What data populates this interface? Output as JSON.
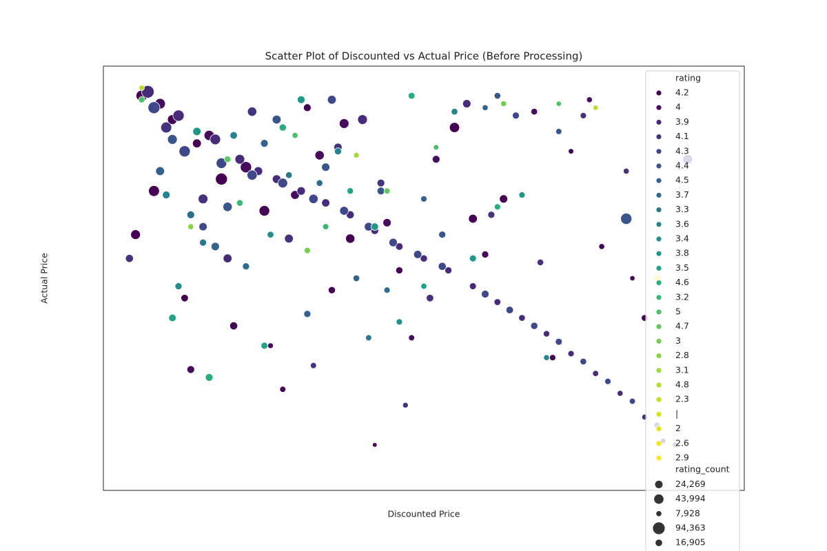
{
  "chart_data": {
    "type": "scatter",
    "title": "Scatter Plot of Discounted vs Actual Price (Before Processing)",
    "xlabel": "Discounted Price",
    "ylabel": "Actual Price",
    "xlim": [
      0,
      100
    ],
    "ylim": [
      0,
      100
    ],
    "legend_title": "rating",
    "size_legend_title": "rating_count",
    "legend_position": "upper right",
    "series": [
      {
        "name": "4.2",
        "color": "#440154",
        "x": [
          4,
          9,
          13,
          17,
          24,
          31,
          38,
          46,
          55,
          63,
          71,
          79,
          86,
          11,
          19,
          27,
          6,
          35,
          58,
          74,
          3,
          42
        ],
        "y": [
          96,
          90,
          84,
          75,
          67,
          93,
          60,
          52,
          88,
          70,
          30,
          58,
          40,
          45,
          38,
          22,
          72,
          47,
          65,
          82,
          61,
          8
        ],
        "s": [
          60000,
          40000,
          30000,
          70000,
          50000,
          20000,
          35000,
          15000,
          45000,
          25000,
          10000,
          8000,
          12000,
          18000,
          22000,
          9000,
          55000,
          16000,
          30000,
          6000,
          40000,
          3000
        ]
      },
      {
        "name": "4",
        "color": "#450d5c",
        "x": [
          7,
          15,
          21,
          29,
          37,
          44,
          52,
          60,
          68,
          77,
          84,
          12,
          25,
          33,
          48
        ],
        "y": [
          94,
          86,
          78,
          71,
          89,
          64,
          80,
          56,
          92,
          95,
          50,
          27,
          33,
          81,
          35
        ],
        "s": [
          50000,
          45000,
          60000,
          30000,
          40000,
          25000,
          20000,
          15000,
          12000,
          8000,
          5000,
          20000,
          7000,
          35000,
          9000
        ]
      },
      {
        "name": "3.9",
        "color": "#472c7a",
        "x": [
          5,
          10,
          16,
          20,
          23,
          26,
          30,
          34,
          38,
          42,
          46,
          50,
          54,
          58,
          62,
          66,
          70,
          74,
          78,
          82,
          86,
          89,
          18,
          40,
          57
        ],
        "y": [
          97,
          91,
          85,
          80,
          77,
          75,
          72,
          69,
          66,
          62,
          58,
          55,
          52,
          48,
          44,
          40,
          36,
          31,
          26,
          21,
          15,
          9,
          55,
          90,
          94
        ],
        "s": [
          80000,
          60000,
          50000,
          40000,
          30000,
          28000,
          26000,
          24000,
          22000,
          20000,
          18000,
          16000,
          15000,
          14000,
          13000,
          12000,
          11000,
          10000,
          9000,
          8000,
          7000,
          6000,
          30000,
          40000,
          25000
        ]
      },
      {
        "name": "4.1",
        "color": "#46337e",
        "x": [
          8,
          14,
          22,
          28,
          36,
          43,
          51,
          61,
          69,
          76,
          83,
          2,
          32,
          47
        ],
        "y": [
          88,
          70,
          92,
          60,
          83,
          74,
          45,
          66,
          54,
          91,
          77,
          55,
          28,
          18
        ],
        "s": [
          55000,
          40000,
          35000,
          30000,
          25000,
          20000,
          18000,
          15000,
          12000,
          10000,
          8000,
          22000,
          9000,
          7000
        ]
      },
      {
        "name": "4.3",
        "color": "#3f4889",
        "x": [
          6,
          11,
          17,
          22,
          27,
          32,
          37,
          41,
          45,
          49,
          53,
          60,
          64,
          68,
          72,
          76,
          80,
          84,
          88,
          91,
          14,
          35,
          65,
          93
        ],
        "y": [
          93,
          82,
          79,
          76,
          74,
          70,
          67,
          63,
          59,
          56,
          53,
          46,
          42,
          38,
          34,
          29,
          24,
          19,
          13,
          8,
          63,
          95,
          91,
          80
        ],
        "s": [
          70000,
          60000,
          50000,
          45000,
          40000,
          35000,
          30000,
          28000,
          26000,
          24000,
          22000,
          20000,
          18000,
          16000,
          14000,
          12000,
          10000,
          9000,
          8000,
          7000,
          25000,
          30000,
          15000,
          40000
        ]
      },
      {
        "name": "4.4",
        "color": "#3a548c",
        "x": [
          9,
          18,
          26,
          34,
          43,
          53,
          62,
          72,
          83
        ],
        "y": [
          85,
          68,
          90,
          78,
          72,
          61,
          96,
          87,
          65
        ],
        "s": [
          40000,
          35000,
          30000,
          25000,
          20000,
          15000,
          12000,
          9000,
          60000
        ]
      },
      {
        "name": "4.5",
        "color": "#34618d",
        "x": [
          7,
          16,
          24,
          31,
          39,
          50,
          60
        ],
        "y": [
          77,
          58,
          84,
          41,
          50,
          70,
          93
        ],
        "s": [
          30000,
          25000,
          20000,
          15000,
          12000,
          10000,
          8000
        ]
      },
      {
        "name": "3.7",
        "color": "#2f6d8e",
        "x": [
          12,
          21,
          33,
          44
        ],
        "y": [
          66,
          53,
          74,
          47
        ],
        "s": [
          20000,
          15000,
          12000,
          10000
        ]
      },
      {
        "name": "3.3",
        "color": "#2b788e",
        "x": [
          14,
          28,
          41
        ],
        "y": [
          59,
          76,
          35
        ],
        "s": [
          15000,
          12000,
          9000
        ]
      },
      {
        "name": "3.6",
        "color": "#27838e",
        "x": [
          8,
          19,
          36,
          55,
          70
        ],
        "y": [
          71,
          86,
          82,
          92,
          30
        ],
        "s": [
          20000,
          18000,
          15000,
          12000,
          8000
        ]
      },
      {
        "name": "3.4",
        "color": "#238e8c",
        "x": [
          10,
          25,
          46
        ],
        "y": [
          48,
          61,
          39
        ],
        "s": [
          15000,
          12000,
          10000
        ]
      },
      {
        "name": "3.8",
        "color": "#1f9888",
        "x": [
          13,
          30,
          42,
          58,
          66
        ],
        "y": [
          87,
          95,
          63,
          55,
          71
        ],
        "s": [
          25000,
          20000,
          18000,
          14000,
          10000
        ]
      },
      {
        "name": "3.5",
        "color": "#21a384",
        "x": [
          9,
          24,
          38,
          50
        ],
        "y": [
          40,
          33,
          72,
          48
        ],
        "s": [
          18000,
          14000,
          11000,
          9000
        ]
      },
      {
        "name": "4.6",
        "color": "#2aad7d",
        "x": [
          15,
          27,
          48,
          62
        ],
        "y": [
          25,
          88,
          96,
          68
        ],
        "s": [
          20000,
          16000,
          13000,
          10000
        ]
      },
      {
        "name": "3.2",
        "color": "#3ab675",
        "x": [
          20,
          34
        ],
        "y": [
          69,
          63
        ],
        "s": [
          12000,
          9000
        ]
      },
      {
        "name": "5",
        "color": "#4cbf6b",
        "x": [
          4,
          29,
          52,
          72
        ],
        "y": [
          95,
          86,
          83,
          94
        ],
        "s": [
          10000,
          8000,
          6000,
          5000
        ]
      },
      {
        "name": "4.7",
        "color": "#60c85f",
        "x": [
          18,
          44
        ],
        "y": [
          80,
          72
        ],
        "s": [
          12000,
          9000
        ]
      },
      {
        "name": "3",
        "color": "#75ce53",
        "x": [
          31,
          63
        ],
        "y": [
          57,
          94
        ],
        "s": [
          10000,
          8000
        ]
      },
      {
        "name": "2.8",
        "color": "#8ad546",
        "x": [
          12
        ],
        "y": [
          63
        ],
        "s": [
          8000
        ]
      },
      {
        "name": "3.1",
        "color": "#a1da39",
        "x": [
          39
        ],
        "y": [
          81
        ],
        "s": [
          7000
        ]
      },
      {
        "name": "4.8",
        "color": "#b5de2c",
        "x": [
          4,
          78
        ],
        "y": [
          98,
          93
        ],
        "s": [
          6000,
          5000
        ]
      },
      {
        "name": "2.3",
        "color": "#c8e020",
        "x": [],
        "y": [],
        "s": []
      },
      {
        "name": "|",
        "color": "#d8e219",
        "x": [],
        "y": [],
        "s": []
      },
      {
        "name": "2",
        "color": "#e5e419",
        "x": [],
        "y": [],
        "s": []
      },
      {
        "name": "2.6",
        "color": "#f1e51d",
        "x": [],
        "y": [],
        "s": []
      },
      {
        "name": "2.9",
        "color": "#fde725",
        "x": [
          88
        ],
        "y": [
          50
        ],
        "s": [
          20000
        ]
      }
    ],
    "size_legend": [
      {
        "value": 24269,
        "label": "24,269"
      },
      {
        "value": 43994,
        "label": "43,994"
      },
      {
        "value": 7928,
        "label": "7,928"
      },
      {
        "value": 94363,
        "label": "94,363"
      },
      {
        "value": 16905,
        "label": "16,905"
      }
    ]
  }
}
